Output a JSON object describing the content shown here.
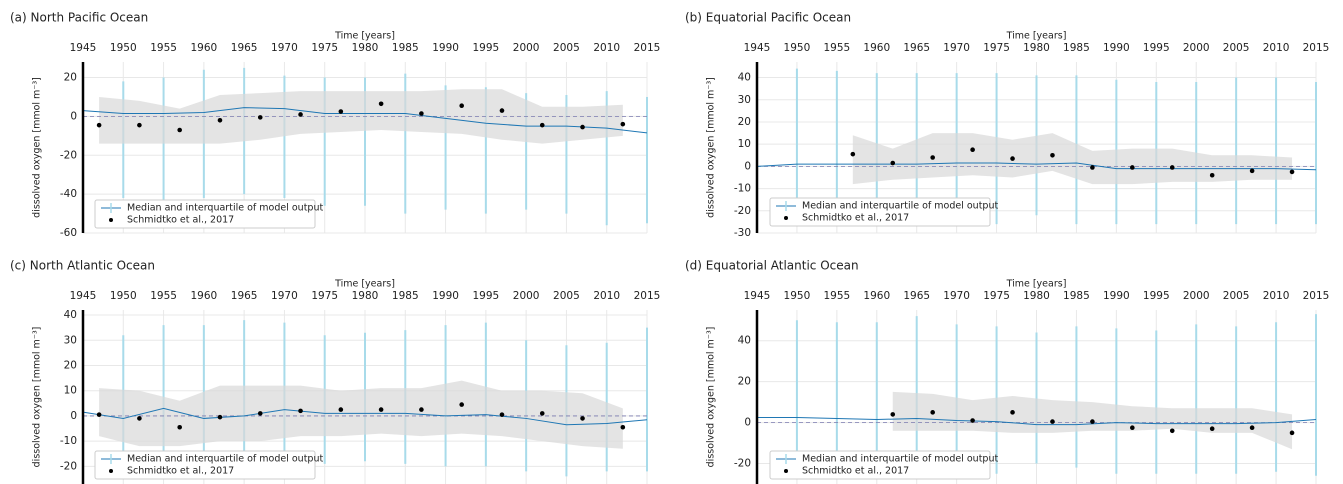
{
  "chart_data": [
    {
      "type": "line",
      "title": "(a) North Pacific Ocean",
      "x_label": "Time [years]",
      "y_label": "dissolved oxygen [mmol m⁻³]",
      "xlim": [
        1945,
        2015
      ],
      "xticks": [
        1945,
        1950,
        1955,
        1960,
        1965,
        1970,
        1975,
        1980,
        1985,
        1990,
        1995,
        2000,
        2005,
        2010,
        2015
      ],
      "ylim": [
        -60,
        28
      ],
      "yticks": [
        -60,
        -40,
        -20,
        0,
        20
      ],
      "grid": true,
      "reference_line": 0,
      "series": [
        {
          "name": "Median and interquartile of model output",
          "color": "#1f77b4",
          "band_color": "#d9d9d9",
          "whisker_color": "#a8dbea",
          "x": [
            1945,
            1950,
            1955,
            1960,
            1965,
            1970,
            1975,
            1980,
            1985,
            1990,
            1995,
            2000,
            2005,
            2010,
            2015
          ],
          "values": [
            3,
            1.5,
            1.5,
            2,
            4.5,
            4,
            1.5,
            1.5,
            1.5,
            -1,
            -3.5,
            -5,
            -5,
            -6,
            -8.5
          ],
          "band_x": [
            1947,
            1952,
            1957,
            1962,
            1967,
            1972,
            1977,
            1982,
            1987,
            1992,
            1997,
            2002,
            2007,
            2012
          ],
          "band_upper": [
            10,
            8,
            4,
            11,
            12,
            13,
            13,
            13,
            13,
            14,
            14,
            5,
            5,
            6
          ],
          "band_lower": [
            -14,
            -14,
            -14,
            -14,
            -12,
            -9,
            -8,
            -7,
            -8,
            -9,
            -12,
            -14,
            -12,
            -10
          ],
          "whisker_x": [
            1950,
            1955,
            1960,
            1965,
            1970,
            1975,
            1980,
            1985,
            1990,
            1995,
            2000,
            2005,
            2010,
            2015
          ],
          "whisker_upper": [
            18,
            20,
            24,
            25,
            21,
            20,
            20,
            22,
            16,
            15,
            12,
            11,
            13,
            10
          ],
          "whisker_lower": [
            -42,
            -44,
            -42,
            -40,
            -42,
            -46,
            -46,
            -50,
            -48,
            -50,
            -48,
            -50,
            -56,
            -55
          ]
        },
        {
          "name": "Schmidtko et al., 2017",
          "color": "#000000",
          "x": [
            1947,
            1952,
            1957,
            1962,
            1967,
            1972,
            1977,
            1982,
            1987,
            1992,
            1997,
            2002,
            2007,
            2012
          ],
          "values": [
            -4.5,
            -4.5,
            -7,
            -2,
            -0.5,
            1,
            2.5,
            6.5,
            1.5,
            5.5,
            3,
            -4.5,
            -5.5,
            -4
          ]
        }
      ]
    },
    {
      "type": "line",
      "title": "(b) Equatorial Pacific Ocean",
      "x_label": "Time [years]",
      "y_label": "dissolved oxygen [mmol m⁻³]",
      "xlim": [
        1945,
        2015
      ],
      "xticks": [
        1945,
        1950,
        1955,
        1960,
        1965,
        1970,
        1975,
        1980,
        1985,
        1990,
        1995,
        2000,
        2005,
        2010,
        2015
      ],
      "ylim": [
        -30,
        47
      ],
      "yticks": [
        -30,
        -20,
        -10,
        0,
        10,
        20,
        30,
        40
      ],
      "grid": true,
      "reference_line": 0,
      "series": [
        {
          "name": "Median and interquartile of model output",
          "color": "#1f77b4",
          "band_color": "#d9d9d9",
          "whisker_color": "#a8dbea",
          "x": [
            1945,
            1950,
            1955,
            1960,
            1965,
            1970,
            1975,
            1980,
            1985,
            1990,
            1995,
            2000,
            2005,
            2010,
            2015
          ],
          "values": [
            0,
            1,
            1,
            1,
            1,
            1.5,
            1.5,
            1,
            1.5,
            -1,
            -1,
            -1,
            -1,
            -1,
            -1.5
          ],
          "band_x": [
            1957,
            1962,
            1967,
            1972,
            1977,
            1982,
            1987,
            1992,
            1997,
            2002,
            2007,
            2012
          ],
          "band_upper": [
            14,
            8,
            15,
            15,
            12,
            15,
            7,
            8,
            8,
            5,
            5,
            4
          ],
          "band_lower": [
            -8,
            -6,
            -5,
            -4,
            -5,
            -2,
            -8,
            -8,
            -7,
            -7,
            -6,
            -6
          ],
          "whisker_x": [
            1950,
            1955,
            1960,
            1965,
            1970,
            1975,
            1980,
            1985,
            1990,
            1995,
            2000,
            2005,
            2010,
            2015
          ],
          "whisker_upper": [
            44,
            43,
            42,
            42,
            42,
            42,
            41,
            41,
            39,
            38,
            38,
            40,
            40,
            38
          ],
          "whisker_lower": [
            -14,
            -14,
            -16,
            -16,
            -17,
            -26,
            -22,
            -26,
            -26,
            -26,
            -26,
            -26,
            -26,
            -26
          ]
        },
        {
          "name": "Schmidtko et al., 2017",
          "color": "#000000",
          "x": [
            1957,
            1962,
            1967,
            1972,
            1977,
            1982,
            1987,
            1992,
            1997,
            2002,
            2007,
            2012
          ],
          "values": [
            5.5,
            1.5,
            4,
            7.5,
            3.5,
            5,
            -0.5,
            -0.5,
            -0.5,
            -4,
            -2,
            -2.5
          ]
        }
      ]
    },
    {
      "type": "line",
      "title": "(c) North Atlantic Ocean",
      "x_label": "Time [years]",
      "y_label": "dissolved oxygen [mmol m⁻³]",
      "xlim": [
        1945,
        2015
      ],
      "xticks": [
        1945,
        1950,
        1955,
        1960,
        1965,
        1970,
        1975,
        1980,
        1985,
        1990,
        1995,
        2000,
        2005,
        2010,
        2015
      ],
      "ylim": [
        -27,
        42
      ],
      "yticks": [
        -20,
        -10,
        0,
        10,
        20,
        30,
        40
      ],
      "grid": true,
      "reference_line": 0,
      "series": [
        {
          "name": "Median and interquartile of model output",
          "color": "#1f77b4",
          "band_color": "#d9d9d9",
          "whisker_color": "#a8dbea",
          "x": [
            1945,
            1950,
            1955,
            1960,
            1965,
            1970,
            1975,
            1980,
            1985,
            1990,
            1995,
            2000,
            2005,
            2010,
            2015
          ],
          "values": [
            1.5,
            -1,
            3,
            -1,
            0,
            2.5,
            1,
            1,
            1,
            0,
            0.5,
            -1,
            -3.5,
            -3,
            -1.5
          ],
          "band_x": [
            1947,
            1952,
            1957,
            1962,
            1967,
            1972,
            1977,
            1982,
            1987,
            1992,
            1997,
            2002,
            2007,
            2012
          ],
          "band_upper": [
            11,
            10,
            6,
            12,
            12,
            12,
            10,
            11,
            11,
            14,
            10,
            10,
            9,
            3
          ],
          "band_lower": [
            -8,
            -12,
            -12,
            -10,
            -10,
            -8,
            -8,
            -7,
            -8,
            -7,
            -8,
            -10,
            -12,
            -13
          ],
          "whisker_x": [
            1950,
            1955,
            1960,
            1965,
            1970,
            1975,
            1980,
            1985,
            1990,
            1995,
            2000,
            2005,
            2010,
            2015
          ],
          "whisker_upper": [
            32,
            36,
            36,
            38,
            37,
            32,
            33,
            34,
            36,
            37,
            30,
            28,
            29,
            35
          ],
          "whisker_lower": [
            -20,
            -20,
            -20,
            -22,
            -20,
            -19,
            -18,
            -19,
            -20,
            -20,
            -22,
            -24,
            -22,
            -22
          ]
        },
        {
          "name": "Schmidtko et al., 2017",
          "color": "#000000",
          "x": [
            1947,
            1952,
            1957,
            1962,
            1967,
            1972,
            1977,
            1982,
            1987,
            1992,
            1997,
            2002,
            2007,
            2012
          ],
          "values": [
            0.5,
            -1,
            -4.5,
            -0.5,
            1,
            2,
            2.5,
            2.5,
            2.5,
            4.5,
            0.5,
            1,
            -1,
            -4.5
          ]
        }
      ]
    },
    {
      "type": "line",
      "title": "(d) Equatorial Atlantic Ocean",
      "x_label": "Time [years]",
      "y_label": "dissolved oxygen [mmol m⁻³]",
      "xlim": [
        1945,
        2015
      ],
      "xticks": [
        1945,
        1950,
        1955,
        1960,
        1965,
        1970,
        1975,
        1980,
        1985,
        1990,
        1995,
        2000,
        2005,
        2010,
        2015
      ],
      "ylim": [
        -30,
        55
      ],
      "yticks": [
        -20,
        0,
        20,
        40
      ],
      "grid": true,
      "reference_line": 0,
      "series": [
        {
          "name": "Median and interquartile of model output",
          "color": "#1f77b4",
          "band_color": "#d9d9d9",
          "whisker_color": "#a8dbea",
          "x": [
            1945,
            1950,
            1955,
            1960,
            1965,
            1970,
            1975,
            1980,
            1985,
            1990,
            1995,
            2000,
            2005,
            2010,
            2015
          ],
          "values": [
            2.5,
            2.5,
            2,
            1.5,
            2,
            1,
            0.5,
            -1,
            -1,
            0,
            -0.5,
            -0.5,
            -0.5,
            0,
            1.5
          ],
          "band_x": [
            1962,
            1967,
            1972,
            1977,
            1982,
            1987,
            1992,
            1997,
            2002,
            2007,
            2012
          ],
          "band_upper": [
            15,
            14,
            11,
            13,
            11,
            10,
            8,
            7,
            7,
            7,
            4
          ],
          "band_lower": [
            -4,
            -4,
            -4,
            -5,
            -5,
            -4,
            -4,
            -3,
            -5,
            -5,
            -13
          ],
          "whisker_x": [
            1950,
            1955,
            1960,
            1965,
            1970,
            1975,
            1980,
            1985,
            1990,
            1995,
            2000,
            2005,
            2010,
            2015
          ],
          "whisker_upper": [
            50,
            49,
            49,
            52,
            48,
            47,
            44,
            47,
            46,
            45,
            48,
            47,
            49,
            53
          ],
          "whisker_lower": [
            -20,
            -20,
            -20,
            -22,
            -22,
            -25,
            -20,
            -22,
            -25,
            -25,
            -25,
            -25,
            -24,
            -26
          ]
        },
        {
          "name": "Schmidtko et al., 2017",
          "color": "#000000",
          "x": [
            1962,
            1967,
            1972,
            1977,
            1982,
            1987,
            1992,
            1997,
            2002,
            2007,
            2012
          ],
          "values": [
            4,
            5,
            1,
            5,
            0.5,
            0.5,
            -2.5,
            -4,
            -3,
            -2.5,
            -5
          ]
        }
      ]
    }
  ]
}
